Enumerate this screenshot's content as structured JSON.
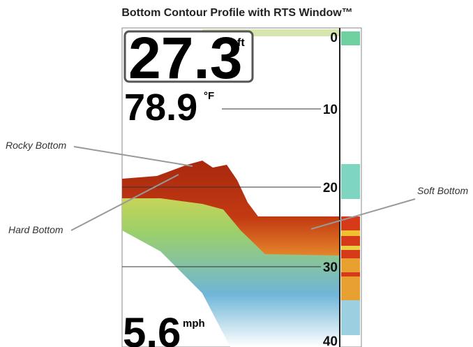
{
  "title": "Bottom Contour Profile with RTS Window™",
  "readouts": {
    "depth": "27.3",
    "depth_unit": "ft",
    "temperature": "78.9",
    "temperature_unit": "°F",
    "speed": "5.6",
    "speed_unit": "mph"
  },
  "depth_scale": [
    "0",
    "10",
    "20",
    "30",
    "40"
  ],
  "callouts": [
    "Rocky Bottom",
    "Hard Bottom",
    "Soft Bottom"
  ]
}
